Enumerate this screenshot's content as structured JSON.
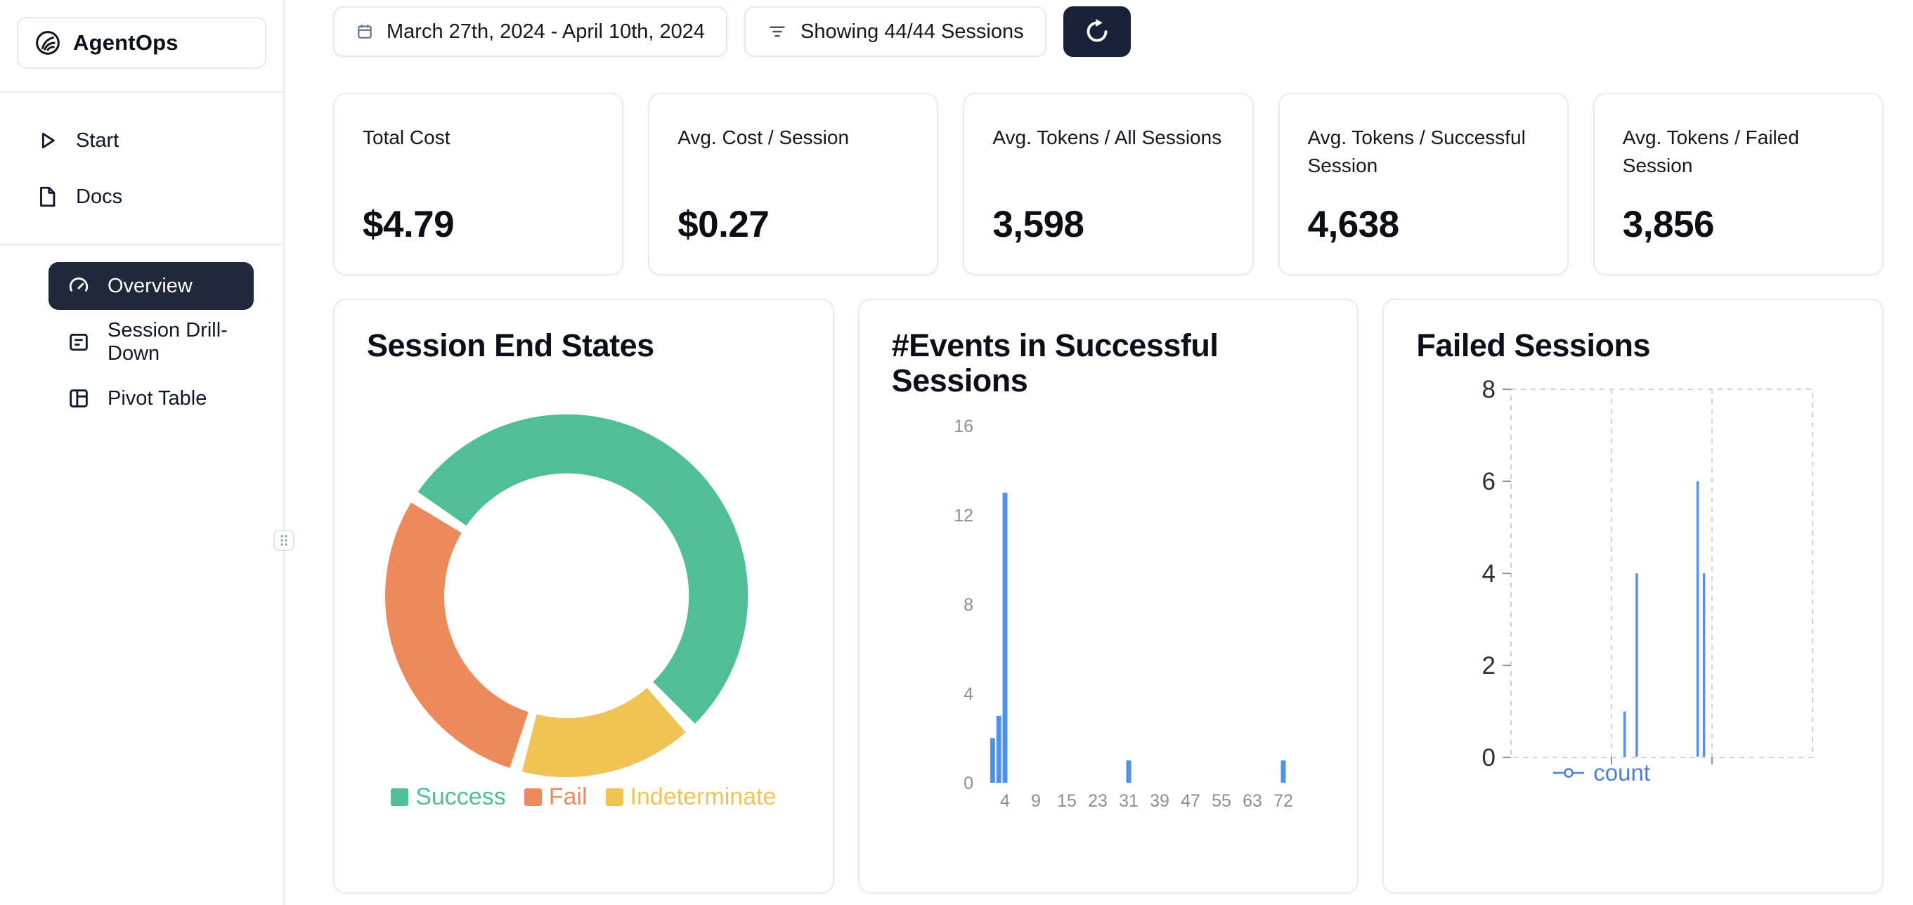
{
  "app": {
    "name": "AgentOps"
  },
  "sidebar": {
    "items_top": [
      {
        "label": "Start",
        "icon": "play-icon",
        "active": false
      },
      {
        "label": "Docs",
        "icon": "docs-icon",
        "active": false
      }
    ],
    "items_main": [
      {
        "label": "Overview",
        "icon": "gauge-icon",
        "active": true
      },
      {
        "label": "Session Drill-Down",
        "icon": "drilldown-icon",
        "active": false
      },
      {
        "label": "Pivot Table",
        "icon": "pivot-icon",
        "active": false
      }
    ]
  },
  "toolbar": {
    "date_range": "March 27th, 2024 - April 10th, 2024",
    "date_range_icon": "calendar-icon",
    "sessions_filter": "Showing 44/44 Sessions",
    "sessions_filter_icon": "filter-icon",
    "refresh_icon": "refresh-icon"
  },
  "stats": [
    {
      "label": "Total Cost",
      "value": "$4.79"
    },
    {
      "label": "Avg. Cost / Session",
      "value": "$0.27"
    },
    {
      "label": "Avg. Tokens / All Sessions",
      "value": "3,598"
    },
    {
      "label": "Avg. Tokens / Successful Session",
      "value": "4,638"
    },
    {
      "label": "Avg. Tokens / Failed Session",
      "value": "3,856"
    }
  ],
  "chart_data": [
    {
      "type": "pie",
      "title": "Session End States",
      "labels": [
        "Success",
        "Fail",
        "Indeterminate"
      ],
      "values": [
        24,
        13,
        7
      ],
      "colors": [
        "#50bf96",
        "#ed8a5c",
        "#f0c355"
      ],
      "donut_hole": 0.67,
      "start_angle_deg": -57,
      "clockwise_order": [
        "Success",
        "Indeterminate",
        "Fail"
      ],
      "segment_gap_deg": 4,
      "legend_position": "bottom"
    },
    {
      "type": "bar",
      "title": "#Events in Successful Sessions",
      "x_ticks": [
        4,
        9,
        15,
        23,
        31,
        39,
        47,
        55,
        63,
        72
      ],
      "bars": [
        {
          "x": 2,
          "count": 2
        },
        {
          "x": 3,
          "count": 3
        },
        {
          "x": 4,
          "count": 13
        },
        {
          "x": 31,
          "count": 1
        },
        {
          "x": 72,
          "count": 1
        }
      ],
      "y_ticks": [
        0,
        4,
        8,
        12,
        16
      ],
      "ylim": [
        0,
        16
      ],
      "bar_color": "#4f93e8",
      "grid": false,
      "legend_position": "none"
    },
    {
      "type": "line",
      "style": "spikes",
      "title": "Failed Sessions",
      "series": [
        {
          "name": "count",
          "color": "#5a8dee",
          "points": [
            {
              "x": 37.7,
              "y": 1
            },
            {
              "x": 41.7,
              "y": 4
            },
            {
              "x": 61.9,
              "y": 6
            },
            {
              "x": 64.0,
              "y": 4
            }
          ]
        }
      ],
      "xlim": [
        0,
        100
      ],
      "ylim": [
        0,
        8
      ],
      "y_ticks": [
        0,
        2,
        4,
        6,
        8
      ],
      "grid": "dashed",
      "legend_position": "bottom",
      "legend_color": "#4d7fd8"
    }
  ]
}
